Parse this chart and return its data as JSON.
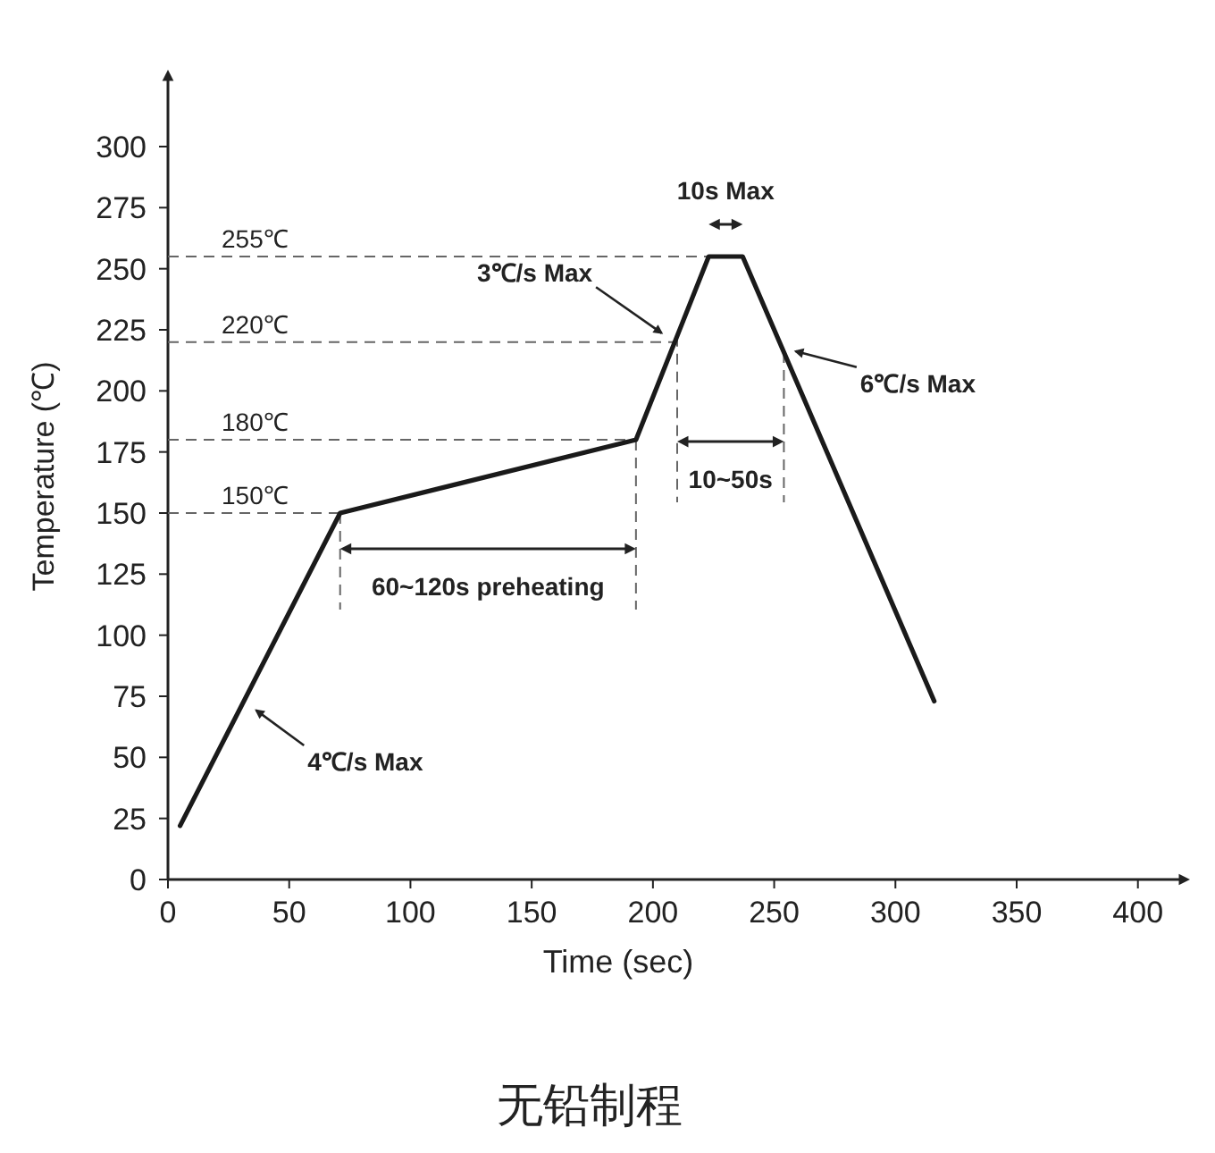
{
  "chart_data": {
    "type": "line",
    "title": "无铅制程",
    "xlabel": "Time (sec)",
    "ylabel": "Temperature (℃)",
    "xlim": [
      0,
      420
    ],
    "ylim": [
      0,
      330
    ],
    "xticks": [
      0,
      50,
      100,
      150,
      200,
      250,
      300,
      350,
      400
    ],
    "yticks": [
      0,
      25,
      50,
      75,
      100,
      125,
      150,
      175,
      200,
      225,
      250,
      275,
      300
    ],
    "series": [
      {
        "color": "#1a1a1a",
        "x": [
          5,
          71,
          193,
          223,
          237,
          316
        ],
        "values": [
          22,
          150,
          180,
          255,
          255,
          73
        ]
      }
    ],
    "ref_lines": [
      {
        "axis": "y",
        "value": 255,
        "label": "255℃",
        "line_style": "dashed",
        "color": "#666666"
      },
      {
        "axis": "y",
        "value": 220,
        "label": "220℃",
        "line_style": "dashed",
        "color": "#666666"
      },
      {
        "axis": "y",
        "value": 180,
        "label": "180℃",
        "line_style": "dashed",
        "color": "#666666"
      },
      {
        "axis": "y",
        "value": 150,
        "label": "150℃",
        "line_style": "dashed",
        "color": "#666666"
      },
      {
        "axis": "x",
        "value": 71,
        "line_style": "dashed",
        "color": "#666666"
      },
      {
        "axis": "x",
        "value": 193,
        "line_style": "dashed",
        "color": "#666666"
      },
      {
        "axis": "x",
        "value": 210,
        "line_style": "dashed",
        "color": "#666666"
      },
      {
        "axis": "x",
        "value": 254,
        "line_style": "dashed",
        "color": "#666666"
      }
    ],
    "annotations": [
      {
        "text": "4℃/s Max",
        "x": 34,
        "y": 71
      },
      {
        "text": "3℃/s Max",
        "x": 206,
        "y": 222
      },
      {
        "text": "6℃/s Max",
        "x": 256,
        "y": 217
      },
      "60~120s preheating",
      "10~50s",
      "10s Max"
    ]
  }
}
